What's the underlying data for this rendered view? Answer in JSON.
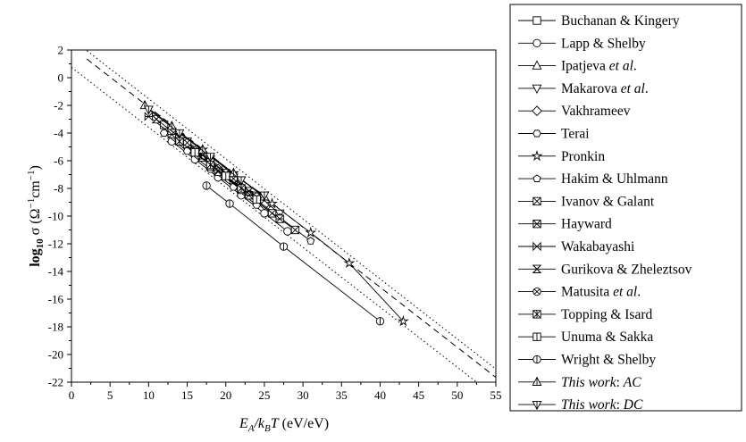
{
  "chart_data": {
    "type": "line",
    "xaxis": {
      "label_main": "E",
      "label_sub1": "A",
      "label_mid": "/k",
      "label_sub2": "B",
      "label_T": "T",
      "label_unit": " (eV/eV)",
      "range": [
        0,
        55
      ],
      "ticks": [
        "0",
        "5",
        "10",
        "15",
        "20",
        "25",
        "30",
        "35",
        "40",
        "45",
        "50",
        "55"
      ]
    },
    "yaxis": {
      "label_main": "log",
      "label_sub": "10",
      "label_sigma": " σ (Ω",
      "label_sup1": "−1",
      "label_cm": "cm",
      "label_sup2": "−1",
      "label_close": ")",
      "range": [
        -22,
        2
      ],
      "ticks": [
        "2",
        "0",
        "-2",
        "-4",
        "-6",
        "-8",
        "-10",
        "-12",
        "-14",
        "-16",
        "-18",
        "-20",
        "-22"
      ]
    },
    "reference_lines": [
      {
        "style": "dotted",
        "x": [
          2,
          55
        ],
        "y": [
          1.95,
          -21.05
        ]
      },
      {
        "style": "dashed",
        "x": [
          2,
          55
        ],
        "y": [
          1.35,
          -21.65
        ]
      },
      {
        "style": "dotted",
        "x": [
          0,
          52.5
        ],
        "y": [
          0.75,
          -22
        ]
      }
    ],
    "series": [
      {
        "name": "Buchanan & Kingery",
        "marker": "square",
        "x": [
          12,
          15,
          18,
          21
        ],
        "y": [
          -3.4,
          -4.8,
          -6.1,
          -7.4
        ]
      },
      {
        "name": "Lapp & Shelby",
        "marker": "circle",
        "x": [
          13,
          16,
          19,
          22,
          25,
          28
        ],
        "y": [
          -4.6,
          -5.9,
          -7.2,
          -8.5,
          -9.8,
          -11.1
        ]
      },
      {
        "name": "Ipatjeva ",
        "name_italic": "et al",
        "name_end": ".",
        "marker": "triangle-up",
        "x": [
          14,
          17,
          20,
          23
        ],
        "y": [
          -4.5,
          -5.8,
          -7.1,
          -8.4
        ]
      },
      {
        "name": "Makarova ",
        "name_italic": "et al",
        "name_end": ".",
        "marker": "triangle-down",
        "x": [
          15,
          18,
          21,
          24,
          27
        ],
        "y": [
          -4.6,
          -5.9,
          -7.2,
          -8.5,
          -9.8
        ]
      },
      {
        "name": "Vakhrameev",
        "marker": "diamond",
        "x": [
          16,
          19,
          22,
          25
        ],
        "y": [
          -5.3,
          -6.6,
          -7.9,
          -9.2
        ]
      },
      {
        "name": "Terai",
        "marker": "hexagon",
        "x": [
          12,
          15,
          18,
          21,
          24
        ],
        "y": [
          -4.0,
          -5.3,
          -6.6,
          -7.9,
          -9.2
        ]
      },
      {
        "name": "Pronkin",
        "marker": "star",
        "x": [
          17,
          21,
          26,
          31,
          36,
          43
        ],
        "y": [
          -5.2,
          -6.9,
          -9.1,
          -11.2,
          -13.4,
          -17.6
        ]
      },
      {
        "name": "Hakim & Uhlmann",
        "marker": "pentagon",
        "x": [
          23,
          27,
          31
        ],
        "y": [
          -8.4,
          -10.1,
          -11.8
        ]
      },
      {
        "name": "Ivanov & Galant",
        "marker": "square-x",
        "x": [
          18,
          22,
          26,
          29
        ],
        "y": [
          -6.4,
          -8.1,
          -9.8,
          -11.0
        ]
      },
      {
        "name": "Hayward",
        "marker": "square-x2",
        "x": [
          19,
          23,
          27
        ],
        "y": [
          -6.8,
          -8.5,
          -10.2
        ]
      },
      {
        "name": "Wakabayashi",
        "marker": "bowtie",
        "x": [
          10,
          13,
          16,
          19,
          22
        ],
        "y": [
          -2.8,
          -4.1,
          -5.4,
          -6.7,
          -8.0
        ]
      },
      {
        "name": "Gurikova & Zheleztsov",
        "marker": "hourglass",
        "x": [
          11,
          14,
          17,
          20,
          23
        ],
        "y": [
          -3.0,
          -4.3,
          -5.6,
          -6.9,
          -8.2
        ]
      },
      {
        "name": "Matusita ",
        "name_italic": "et al",
        "name_end": ".",
        "marker": "circle-x",
        "x": [
          15,
          18,
          21,
          24
        ],
        "y": [
          -4.7,
          -6.0,
          -7.3,
          -8.6
        ]
      },
      {
        "name": "Topping & Isard",
        "marker": "square-x3",
        "x": [
          14,
          18,
          22
        ],
        "y": [
          -4.6,
          -6.3,
          -8.0
        ]
      },
      {
        "name": "Unuma & Sakka",
        "marker": "square-line",
        "x": [
          16,
          20,
          24
        ],
        "y": [
          -5.4,
          -7.1,
          -8.8
        ]
      },
      {
        "name": "Wright & Shelby",
        "marker": "circle-line",
        "x": [
          17.5,
          20.5,
          27.5,
          40
        ],
        "y": [
          -7.8,
          -9.1,
          -12.2,
          -17.6
        ]
      },
      {
        "name": "",
        "name_italic": "This work",
        "name_end": ": ",
        "name_italic2": "AC",
        "marker": "triangle-up-line",
        "x": [
          9.5,
          13,
          17,
          21,
          25
        ],
        "y": [
          -2.0,
          -3.5,
          -5.2,
          -6.9,
          -8.6
        ]
      },
      {
        "name": "",
        "name_italic": "This work",
        "name_end": ": ",
        "name_italic2": "DC",
        "marker": "triangle-down-line",
        "x": [
          10,
          14,
          18,
          22,
          25
        ],
        "y": [
          -2.3,
          -4.0,
          -5.7,
          -7.4,
          -8.5
        ]
      }
    ]
  }
}
